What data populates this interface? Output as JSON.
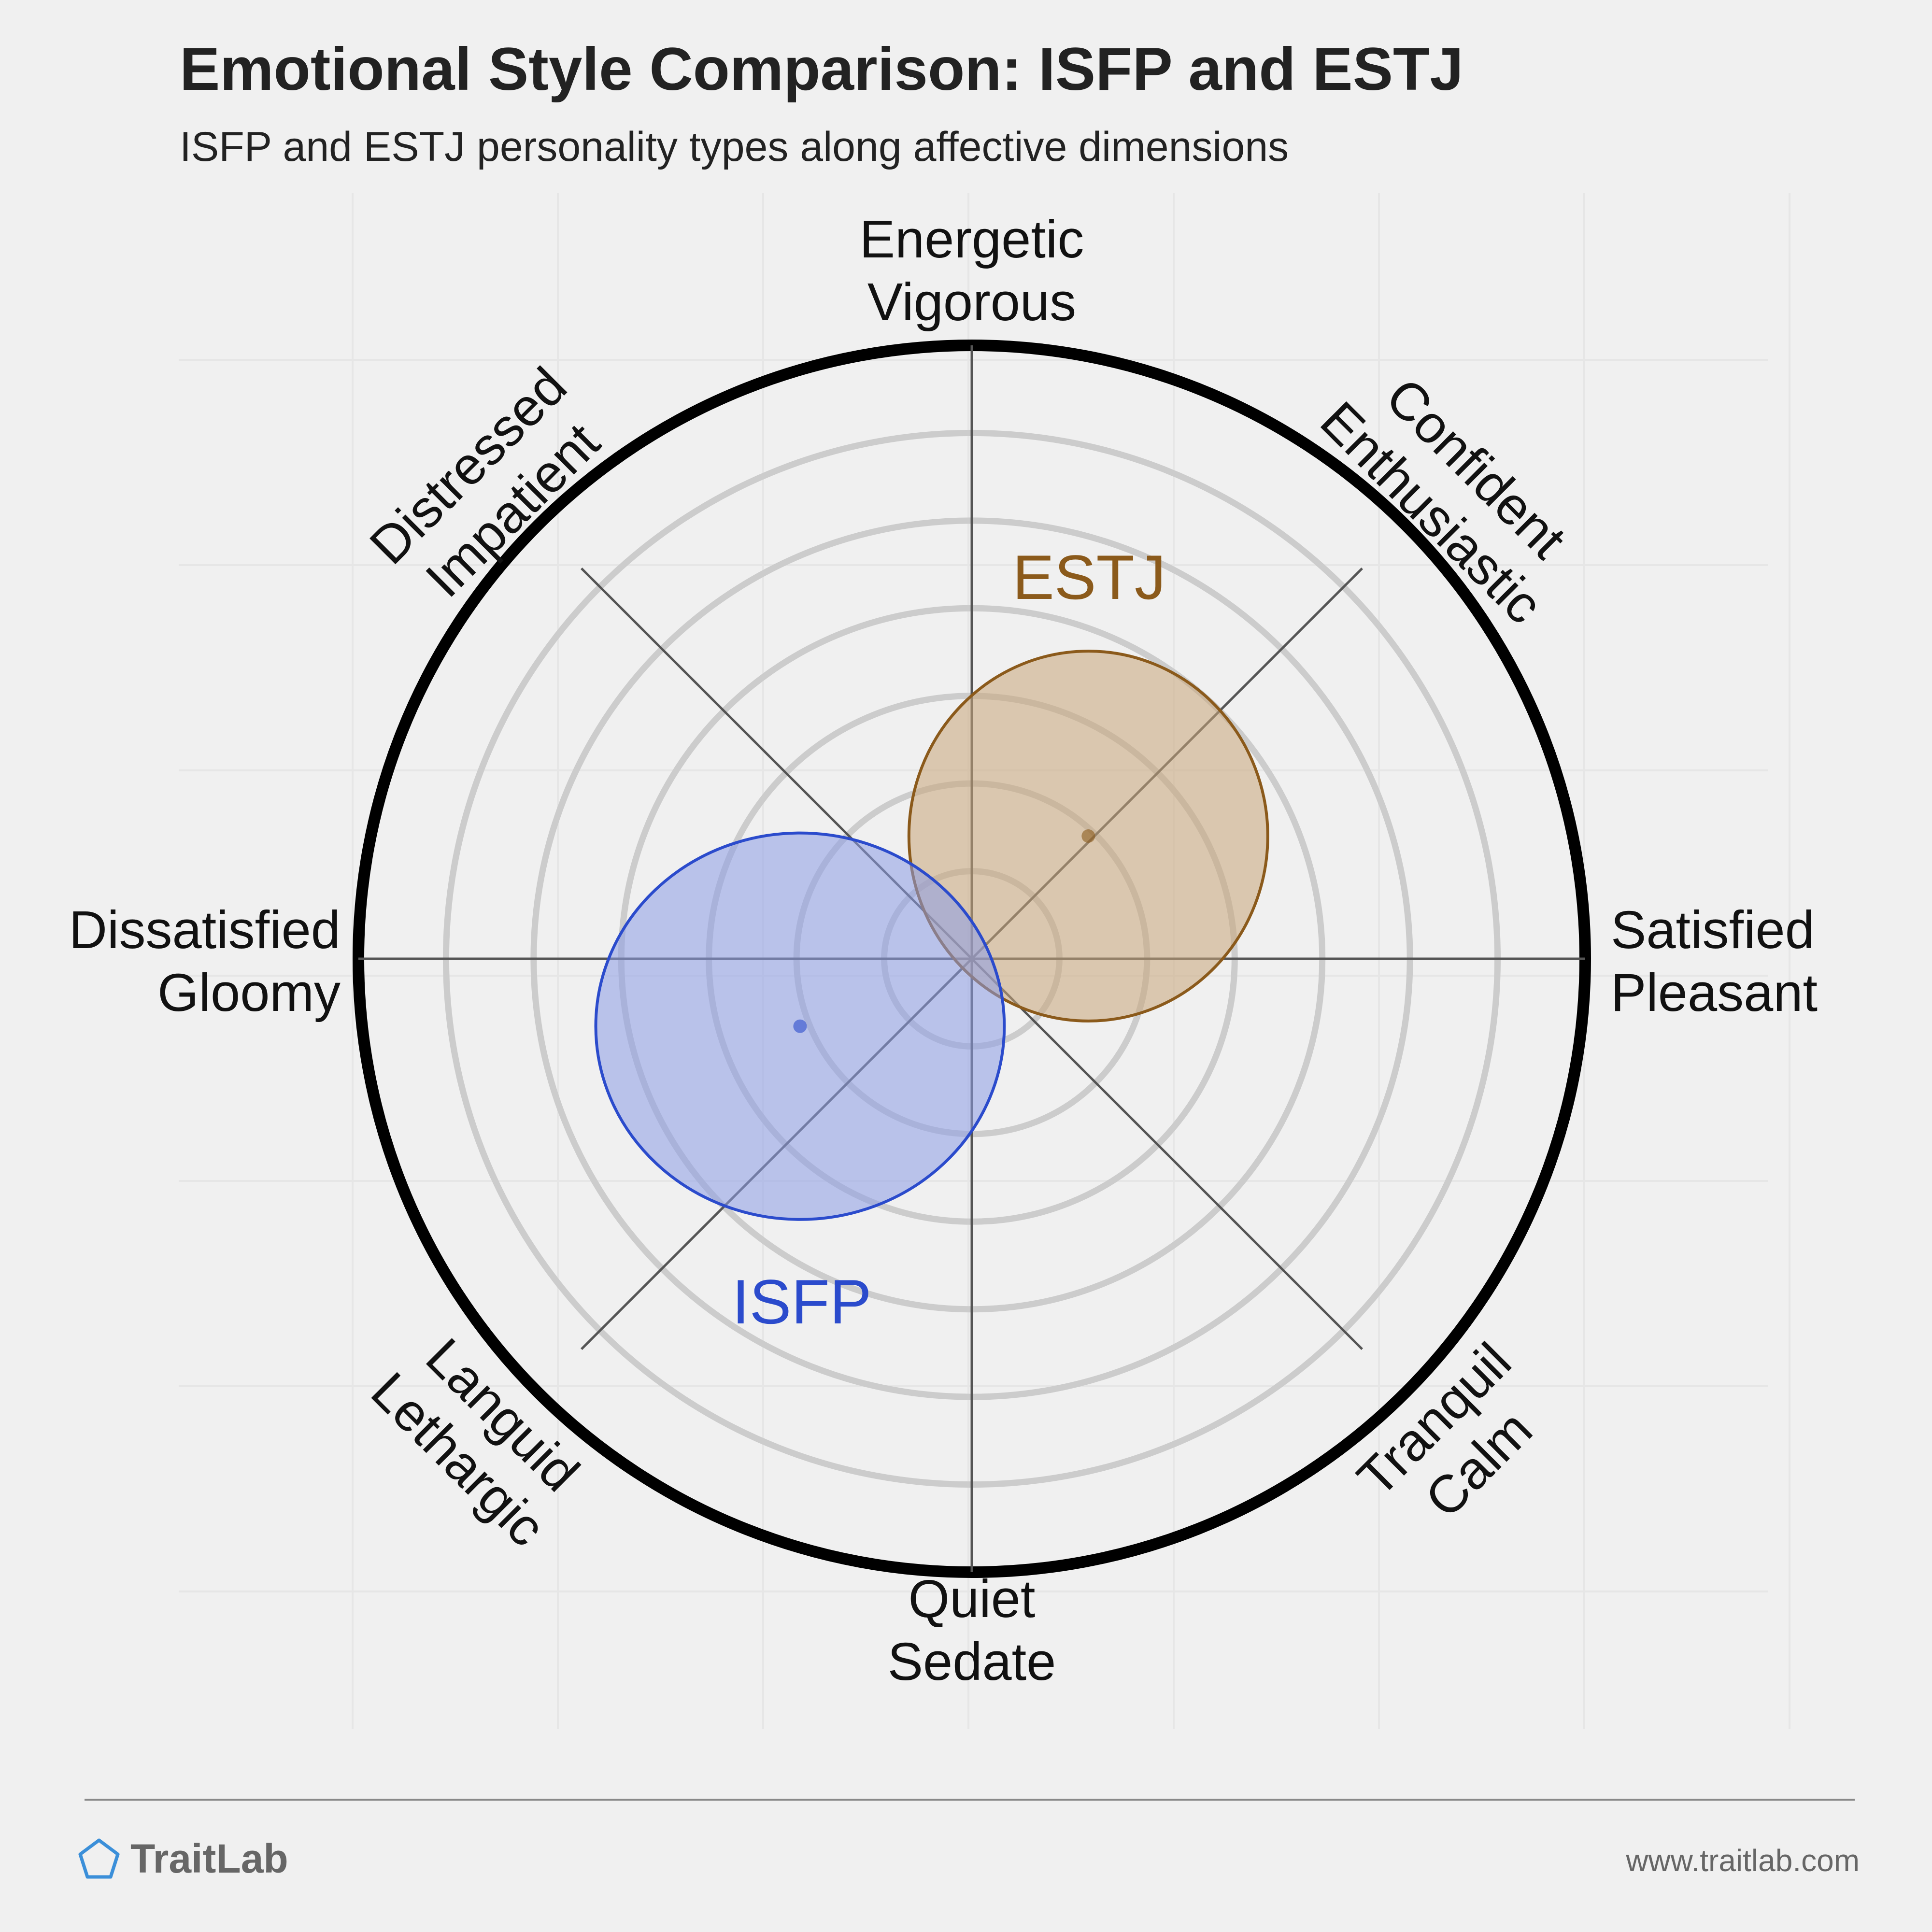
{
  "header": {
    "title": "Emotional Style Comparison: ISFP and ESTJ",
    "subtitle": "ISFP and ESTJ personality types along affective dimensions"
  },
  "chart_data": {
    "type": "radar-ellipse",
    "axes": [
      {
        "lines": [
          "Energetic",
          "Vigorous"
        ],
        "direction": "top"
      },
      {
        "lines": [
          "Confident",
          "Enthusiastic"
        ],
        "direction": "top-right"
      },
      {
        "lines": [
          "Satisfied",
          "Pleasant"
        ],
        "direction": "right"
      },
      {
        "lines": [
          "Tranquil",
          "Calm"
        ],
        "direction": "bottom-right"
      },
      {
        "lines": [
          "Quiet",
          "Sedate"
        ],
        "direction": "bottom"
      },
      {
        "lines": [
          "Languid",
          "Lethargic"
        ],
        "direction": "bottom-left"
      },
      {
        "lines": [
          "Dissatisfied",
          "Gloomy"
        ],
        "direction": "left"
      },
      {
        "lines": [
          "Distressed",
          "Impatient"
        ],
        "direction": "top-left"
      }
    ],
    "series": [
      {
        "name": "ESTJ",
        "color": "#8b5a1b",
        "fill": "#c8a67a",
        "center": [
          0.19,
          0.2
        ],
        "spread": [
          0.65,
          0.67
        ]
      },
      {
        "name": "ISFP",
        "color": "#2b4bcc",
        "fill": "#8c9ce6",
        "center": [
          -0.28,
          -0.11
        ],
        "spread": [
          0.74,
          0.7
        ]
      }
    ],
    "ring_count": 6,
    "range": [
      -1,
      1
    ]
  },
  "footer": {
    "brand": "TraitLab",
    "url": "www.traitlab.com"
  },
  "colors": {
    "background": "#f0f0f0",
    "ring": "#cccccc",
    "outer_ring": "#000000",
    "axis": "#555555"
  }
}
